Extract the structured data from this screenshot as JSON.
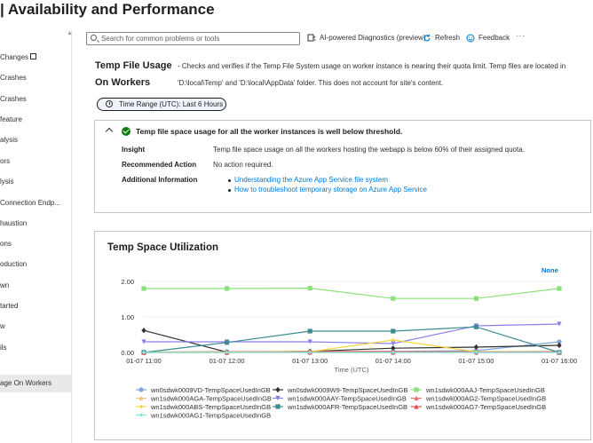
{
  "header": {
    "title": "| Availability and Performance",
    "more": "···"
  },
  "sidebar": {
    "items": [
      {
        "label": "Changes",
        "external": true
      },
      {
        "label": "Crashes"
      },
      {
        "label": "Crashes"
      },
      {
        "label": "feature"
      },
      {
        "label": "alysis"
      },
      {
        "label": "ors"
      },
      {
        "label": "lysis"
      },
      {
        "label": "Connection Endp..."
      },
      {
        "label": "haustion"
      },
      {
        "label": "ons"
      },
      {
        "label": "oduction"
      },
      {
        "label": "wn"
      },
      {
        "label": "tarted"
      },
      {
        "label": "w"
      },
      {
        "label": "ils"
      },
      {
        "label": "age On Workers",
        "active": true
      }
    ]
  },
  "toolbar": {
    "search_placeholder": "Search for common problems or tools",
    "ai_label": "AI-powered Diagnostics (preview)",
    "refresh_label": "Refresh",
    "feedback_label": "Feedback",
    "more": "···"
  },
  "detector": {
    "title_line1": "Temp File Usage",
    "title_line2": "On Workers",
    "desc_line1": "- Checks and verifies if the Temp File System usage on worker instance is nearing their quota limit. Temp files are located in",
    "desc_line2": "'D:\\local\\Temp' and 'D:\\local\\AppData' folder. This does not account for site's content."
  },
  "time_range": "Time Range (UTC): Last 6 Hours",
  "insight": {
    "title": "Temp file space usage for all the worker instances is well below threshold.",
    "status_color": "#107c10",
    "rows": [
      {
        "label": "Insight",
        "value": "Temp file space usage on all the workers hosting the webapp is below 60% of their assigned quota."
      },
      {
        "label": "Recommended Action",
        "value": "No action required."
      },
      {
        "label": "Additional Information",
        "value": ""
      }
    ],
    "links": [
      "Understanding the Azure App Service file system",
      "How to troubleshoot temporary storage on Azure App Service"
    ]
  },
  "chart": {
    "title": "Temp Space Utilization",
    "none_label": "None"
  },
  "chart_data": {
    "type": "line",
    "title": "Temp Space Utilization",
    "xlabel": "Time (UTC)",
    "ylabel": "",
    "x": [
      "01-07 11:00",
      "01-07 12:00",
      "01-07 13:00",
      "01-07 14:00",
      "01-07 15:00",
      "01-07 16:00"
    ],
    "ylim": [
      0,
      2.2
    ],
    "yticks": [
      "0.00",
      "1.00",
      "2.00"
    ],
    "series": [
      {
        "name": "wn0sdwk0009VD-TempSpaceUsedInGB",
        "color": "#7ea6d9",
        "marker": "circle",
        "values": [
          0.01,
          0.02,
          0.02,
          0.03,
          0.05,
          0.3
        ]
      },
      {
        "name": "wn0sdwk0009W9-TempSpaceUsedInGB",
        "color": "#323130",
        "marker": "diamond",
        "values": [
          0.62,
          0.01,
          0.03,
          0.12,
          0.15,
          0.2
        ]
      },
      {
        "name": "wn1sdwk000AAJ-TempSpaceUsedInGB",
        "color": "#8be07a",
        "marker": "square",
        "values": [
          1.8,
          1.8,
          1.81,
          1.52,
          1.52,
          1.8
        ]
      },
      {
        "name": "wn1sdwk000AGA-TempSpaceUsedInGB",
        "color": "#f0c78a",
        "marker": "triangle-up",
        "values": [
          0.01,
          0.01,
          0.02,
          0.02,
          0.02,
          0.03
        ]
      },
      {
        "name": "wn1sdwk000AAY-TempSpaceUsedInGB",
        "color": "#8a80e8",
        "marker": "triangle-down",
        "values": [
          0.3,
          0.3,
          0.3,
          0.25,
          0.75,
          0.8
        ]
      },
      {
        "name": "wn1sdwk000AG2-TempSpaceUsedInGB",
        "color": "#e8706e",
        "marker": "triangle-up",
        "values": [
          0.01,
          0.02,
          0.03,
          0.03,
          0.02,
          0.02
        ]
      },
      {
        "name": "wn1sdwk000ABS-TempSpaceUsedInGB",
        "color": "#f5d63a",
        "marker": "star",
        "values": [
          0.01,
          0.01,
          0.02,
          0.35,
          0.02,
          0.01
        ]
      },
      {
        "name": "wn1sdwk000AFR-TempSpaceUsedInGB",
        "color": "#3d8d92",
        "marker": "square",
        "values": [
          0.0,
          0.28,
          0.6,
          0.6,
          0.72,
          0.0
        ]
      },
      {
        "name": "wn1sdwk000AG7-TempSpaceUsedInGB",
        "color": "#e84a4a",
        "marker": "triangle-up",
        "values": [
          0.0,
          0.0,
          0.01,
          0.01,
          0.01,
          0.01
        ]
      },
      {
        "name": "wn1sdwk000AG1-TempSpaceUsedInGB",
        "color": "#7ee8e0",
        "marker": "star",
        "values": [
          0.0,
          0.0,
          0.0,
          0.0,
          0.0,
          0.0
        ]
      }
    ]
  }
}
